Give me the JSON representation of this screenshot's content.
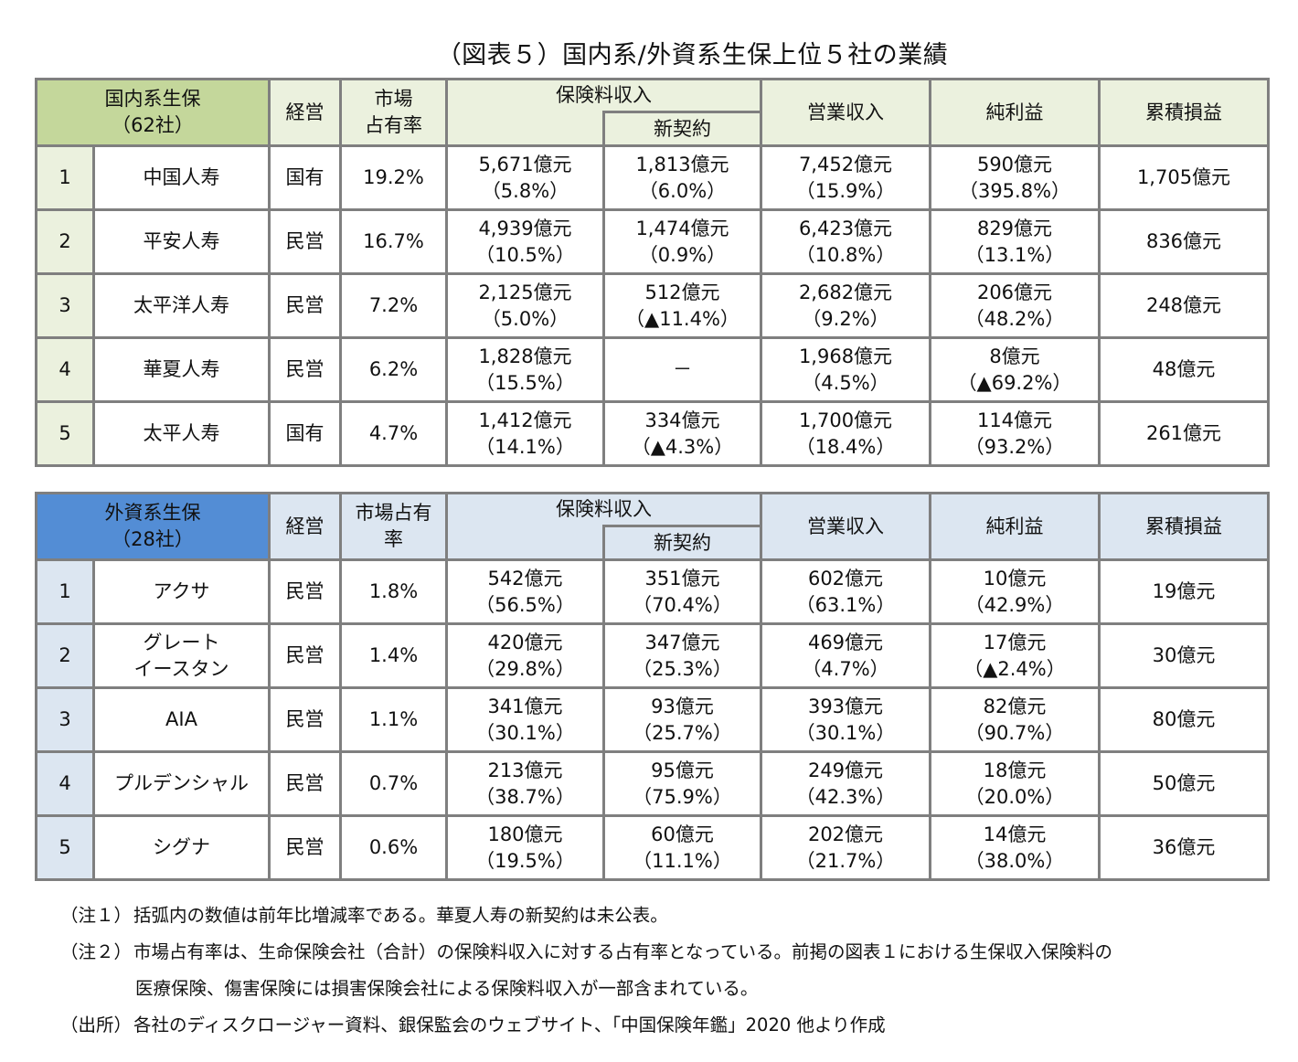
{
  "title": "（図表５）国内系/外資系生保上位５社の業績",
  "domestic": {
    "header": {
      "group": "国内系生保",
      "count": "（62社）",
      "ownership": "経営",
      "market_share_l1": "市場",
      "market_share_l2": "占有率",
      "premium": "保険料収入",
      "new_contracts": "新契約",
      "operating_revenue": "営業収入",
      "net_profit": "純利益",
      "accumulated": "累積損益"
    },
    "rows": [
      {
        "rank": "1",
        "name": "中国人寿",
        "name_l2": "",
        "ownership": "国有",
        "share": "19.2%",
        "premium": "5,671億元",
        "premium_chg": "（5.8%）",
        "new": "1,813億元",
        "new_chg": "（6.0%）",
        "op": "7,452億元",
        "op_chg": "（15.9%）",
        "profit": "590億元",
        "profit_chg": "（395.8%）",
        "accum": "1,705億元"
      },
      {
        "rank": "2",
        "name": "平安人寿",
        "name_l2": "",
        "ownership": "民営",
        "share": "16.7%",
        "premium": "4,939億元",
        "premium_chg": "（10.5%）",
        "new": "1,474億元",
        "new_chg": "（0.9%）",
        "op": "6,423億元",
        "op_chg": "（10.8%）",
        "profit": "829億元",
        "profit_chg": "（13.1%）",
        "accum": "836億元"
      },
      {
        "rank": "3",
        "name": "太平洋人寿",
        "name_l2": "",
        "ownership": "民営",
        "share": "7.2%",
        "premium": "2,125億元",
        "premium_chg": "（5.0%）",
        "new": "512億元",
        "new_chg": "（▲11.4%）",
        "op": "2,682億元",
        "op_chg": "（9.2%）",
        "profit": "206億元",
        "profit_chg": "（48.2%）",
        "accum": "248億元"
      },
      {
        "rank": "4",
        "name": "華夏人寿",
        "name_l2": "",
        "ownership": "民営",
        "share": "6.2%",
        "premium": "1,828億元",
        "premium_chg": "（15.5%）",
        "new": "－",
        "new_chg": "",
        "op": "1,968億元",
        "op_chg": "（4.5%）",
        "profit": "8億元",
        "profit_chg": "（▲69.2%）",
        "accum": "48億元"
      },
      {
        "rank": "5",
        "name": "太平人寿",
        "name_l2": "",
        "ownership": "国有",
        "share": "4.7%",
        "premium": "1,412億元",
        "premium_chg": "（14.1%）",
        "new": "334億元",
        "new_chg": "（▲4.3%）",
        "op": "1,700億元",
        "op_chg": "（18.4%）",
        "profit": "114億元",
        "profit_chg": "（93.2%）",
        "accum": "261億元"
      }
    ]
  },
  "foreign": {
    "header": {
      "group": "外資系生保",
      "count": "（28社）",
      "ownership": "経営",
      "market_share_l1": "市場占有",
      "market_share_l2": "率",
      "premium": "保険料収入",
      "new_contracts": "新契約",
      "operating_revenue": "営業収入",
      "net_profit": "純利益",
      "accumulated": "累積損益"
    },
    "rows": [
      {
        "rank": "1",
        "name": "アクサ",
        "name_l2": "",
        "ownership": "民営",
        "share": "1.8%",
        "premium": "542億元",
        "premium_chg": "（56.5%）",
        "new": "351億元",
        "new_chg": "（70.4%）",
        "op": "602億元",
        "op_chg": "（63.1%）",
        "profit": "10億元",
        "profit_chg": "（42.9%）",
        "accum": "19億元"
      },
      {
        "rank": "2",
        "name": "グレート",
        "name_l2": "イースタン",
        "ownership": "民営",
        "share": "1.4%",
        "premium": "420億元",
        "premium_chg": "（29.8%）",
        "new": "347億元",
        "new_chg": "（25.3%）",
        "op": "469億元",
        "op_chg": "（4.7%）",
        "profit": "17億元",
        "profit_chg": "（▲2.4%）",
        "accum": "30億元"
      },
      {
        "rank": "3",
        "name": "AIA",
        "name_l2": "",
        "ownership": "民営",
        "share": "1.1%",
        "premium": "341億元",
        "premium_chg": "（30.1%）",
        "new": "93億元",
        "new_chg": "（25.7%）",
        "op": "393億元",
        "op_chg": "（30.1%）",
        "profit": "82億元",
        "profit_chg": "（90.7%）",
        "accum": "80億元"
      },
      {
        "rank": "4",
        "name": "プルデンシャル",
        "name_l2": "",
        "ownership": "民営",
        "share": "0.7%",
        "premium": "213億元",
        "premium_chg": "（38.7%）",
        "new": "95億元",
        "new_chg": "（75.9%）",
        "op": "249億元",
        "op_chg": "（42.3%）",
        "profit": "18億元",
        "profit_chg": "（20.0%）",
        "accum": "50億元"
      },
      {
        "rank": "5",
        "name": "シグナ",
        "name_l2": "",
        "ownership": "民営",
        "share": "0.6%",
        "premium": "180億元",
        "premium_chg": "（19.5%）",
        "new": "60億元",
        "new_chg": "（11.1%）",
        "op": "202億元",
        "op_chg": "（21.7%）",
        "profit": "14億元",
        "profit_chg": "（38.0%）",
        "accum": "36億元"
      }
    ]
  },
  "notes": [
    {
      "label": "（注１）",
      "text": "括弧内の数値は前年比増減率である。華夏人寿の新契約は未公表。"
    },
    {
      "label": "（注２）",
      "text": "市場占有率は、生命保険会社（合計）の保険料収入に対する占有率となっている。前掲の図表１における生保収入保険料の"
    },
    {
      "label": "",
      "text": "医療保険、傷害保険には損害保険会社による保険料収入が一部含まれている。"
    },
    {
      "label": "（出所）",
      "text": "各社のディスクロージャー資料、銀保監会のウェブサイト、「中国保険年鑑」2020 他より作成"
    }
  ],
  "colors": {
    "domestic_corner": "#c4d79b",
    "domestic_header": "#ebf1de",
    "foreign_corner": "#538dd5",
    "foreign_header": "#dce6f1",
    "border": "#7f7f7f"
  }
}
